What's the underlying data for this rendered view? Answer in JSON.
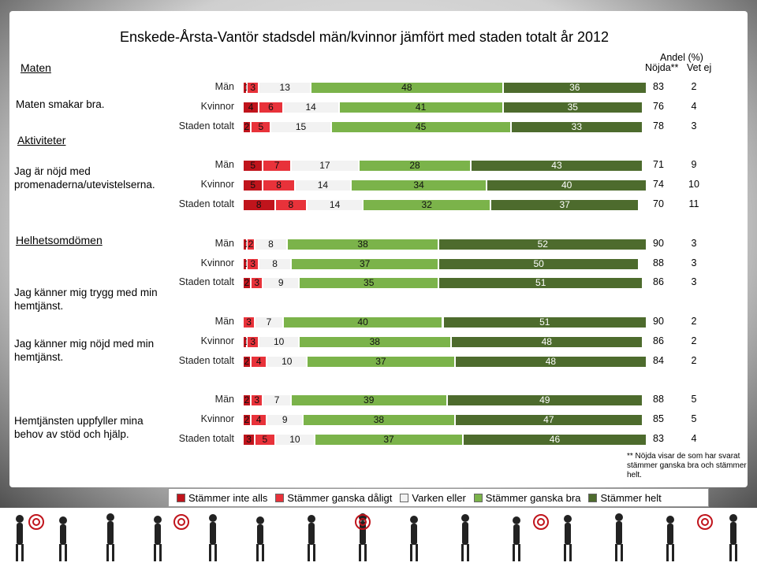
{
  "title": "Enskede-Årsta-Vantör stadsdel män/kvinnor jämfört med staden totalt år 2012",
  "sections": {
    "maten": "Maten",
    "aktiviteter": "Aktiviteter",
    "helhet": "Helhetsomdömen"
  },
  "questions": {
    "q1": "Maten smakar bra.",
    "q2": "Jag är nöjd med promenaderna/utevistelserna.",
    "q3": "Jag känner mig trygg med min hemtjänst.",
    "q4": "Jag känner mig nöjd med min hemtjänst.",
    "q5": "Hemtjänsten uppfyller mina behov av stöd och hjälp."
  },
  "header": {
    "andel": "Andel (%)",
    "nojda": "Nöjda**",
    "vetej": "Vet ej"
  },
  "legend": [
    "Stämmer inte alls",
    "Stämmer ganska dåligt",
    "Varken eller",
    "Stämmer ganska bra",
    "Stämmer helt"
  ],
  "footnote": "** Nöjda visar de som har svarat stämmer ganska bra och stämmer helt.",
  "colors": {
    "c1": "#c0141c",
    "c2": "#e8323a",
    "c3": "#f2f2f2",
    "c4": "#7bb34a",
    "c5": "#4d6b2d"
  },
  "chart_data": {
    "type": "bar",
    "stacked": true,
    "orientation": "horizontal",
    "series_names": [
      "Stämmer inte alls",
      "Stämmer ganska dåligt",
      "Varken eller",
      "Stämmer ganska bra",
      "Stämmer helt"
    ],
    "rows": [
      {
        "group": "Män",
        "values": [
          1,
          3,
          13,
          48,
          36
        ],
        "nojda": 83,
        "vetej": 2
      },
      {
        "group": "Kvinnor",
        "values": [
          4,
          6,
          14,
          41,
          35
        ],
        "nojda": 76,
        "vetej": 4
      },
      {
        "group": "Staden totalt",
        "values": [
          2,
          5,
          15,
          45,
          33
        ],
        "nojda": 78,
        "vetej": 3
      },
      {
        "group": "Män",
        "values": [
          5,
          7,
          17,
          28,
          43
        ],
        "nojda": 71,
        "vetej": 9
      },
      {
        "group": "Kvinnor",
        "values": [
          5,
          8,
          14,
          34,
          40
        ],
        "nojda": 74,
        "vetej": 10
      },
      {
        "group": "Staden totalt",
        "values": [
          8,
          8,
          14,
          32,
          37
        ],
        "nojda": 70,
        "vetej": 11
      },
      {
        "group": "Män",
        "values": [
          1,
          2,
          8,
          38,
          52
        ],
        "nojda": 90,
        "vetej": 3
      },
      {
        "group": "Kvinnor",
        "values": [
          1,
          3,
          8,
          37,
          50
        ],
        "nojda": 88,
        "vetej": 3
      },
      {
        "group": "Staden totalt",
        "values": [
          2,
          3,
          9,
          35,
          51
        ],
        "nojda": 86,
        "vetej": 3
      },
      {
        "group": "Män",
        "values": [
          0,
          3,
          7,
          40,
          51
        ],
        "nojda": 90,
        "vetej": 2
      },
      {
        "group": "Kvinnor",
        "values": [
          1,
          3,
          10,
          38,
          48
        ],
        "nojda": 86,
        "vetej": 2
      },
      {
        "group": "Staden totalt",
        "values": [
          2,
          4,
          10,
          37,
          48
        ],
        "nojda": 84,
        "vetej": 2
      },
      {
        "group": "Män",
        "values": [
          2,
          3,
          7,
          39,
          49
        ],
        "nojda": 88,
        "vetej": 5
      },
      {
        "group": "Kvinnor",
        "values": [
          2,
          4,
          9,
          38,
          47
        ],
        "nojda": 85,
        "vetej": 5
      },
      {
        "group": "Staden totalt",
        "values": [
          3,
          5,
          10,
          37,
          46
        ],
        "nojda": 83,
        "vetej": 4
      }
    ]
  }
}
